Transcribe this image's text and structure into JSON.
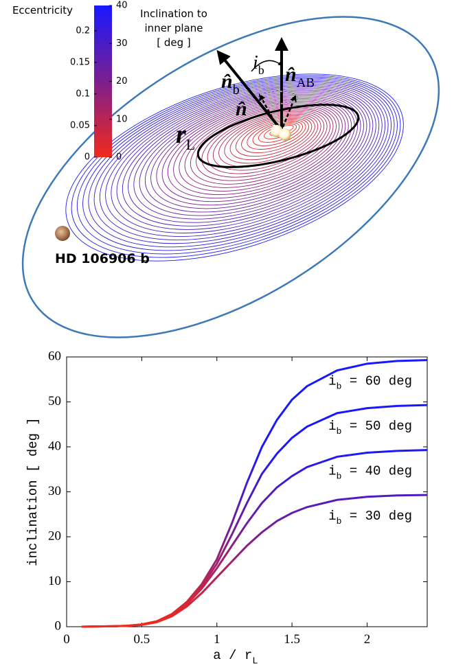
{
  "diagram": {
    "colorbar": {
      "left_title": "Eccentricity",
      "left_lim": [
        0,
        0.24
      ],
      "left_ticks": [
        0,
        0.05,
        0.1,
        0.15,
        0.2
      ],
      "right_title": [
        "Inclination to",
        "inner plane",
        "[ deg ]"
      ],
      "right_lim": [
        0,
        40
      ],
      "right_ticks": [
        0,
        10,
        20,
        30,
        40
      ],
      "colormap": [
        "#f22a1c",
        "#7c1f8e",
        "#1818ff"
      ]
    },
    "labels": {
      "r_L": [
        "r",
        "L"
      ],
      "n_b": [
        "n̂",
        "b"
      ],
      "i_b": [
        "i",
        "b"
      ],
      "n_AB": [
        "n̂",
        "AB"
      ],
      "n": "n̂",
      "planet": "HD 106906 b"
    }
  },
  "chart_data": {
    "type": "line",
    "x_label": [
      "a / r",
      "L"
    ],
    "y_label": "inclination [ deg ]",
    "x": [
      0.1,
      0.2,
      0.3,
      0.4,
      0.5,
      0.6,
      0.7,
      0.8,
      0.9,
      1.0,
      1.1,
      1.2,
      1.3,
      1.4,
      1.5,
      1.6,
      1.8,
      2.0,
      2.2,
      2.4
    ],
    "series": [
      {
        "label": [
          "i",
          "b",
          " = 60 deg"
        ],
        "values": [
          0,
          0.05,
          0.1,
          0.2,
          0.5,
          1.2,
          2.8,
          5.5,
          9.5,
          15,
          23,
          32,
          40,
          46,
          50.5,
          53.5,
          57,
          58.5,
          59.1,
          59.3
        ]
      },
      {
        "label": [
          "i",
          "b",
          " = 50 deg"
        ],
        "values": [
          0,
          0.05,
          0.1,
          0.2,
          0.5,
          1.2,
          2.7,
          5.3,
          9,
          14,
          20.5,
          27.5,
          34,
          38.5,
          42,
          44.5,
          47.5,
          48.6,
          49.1,
          49.3
        ]
      },
      {
        "label": [
          "i",
          "b",
          " = 40 deg"
        ],
        "values": [
          0,
          0.05,
          0.1,
          0.2,
          0.5,
          1.1,
          2.5,
          5,
          8.5,
          13,
          18,
          23,
          27.5,
          31,
          33.5,
          35.5,
          37.8,
          38.7,
          39.1,
          39.3
        ]
      },
      {
        "label": [
          "i",
          "b",
          " = 30 deg"
        ],
        "values": [
          0,
          0.05,
          0.1,
          0.2,
          0.4,
          1.0,
          2.3,
          4.5,
          7.5,
          11,
          14.5,
          18,
          21,
          23.5,
          25.3,
          26.6,
          28.2,
          28.9,
          29.2,
          29.3
        ]
      }
    ],
    "xlim": [
      0,
      2.4
    ],
    "ylim": [
      0,
      60
    ],
    "xticks": [
      0,
      0.5,
      1,
      1.5,
      2
    ],
    "yticks": [
      0,
      10,
      20,
      30,
      40,
      50,
      60
    ]
  }
}
